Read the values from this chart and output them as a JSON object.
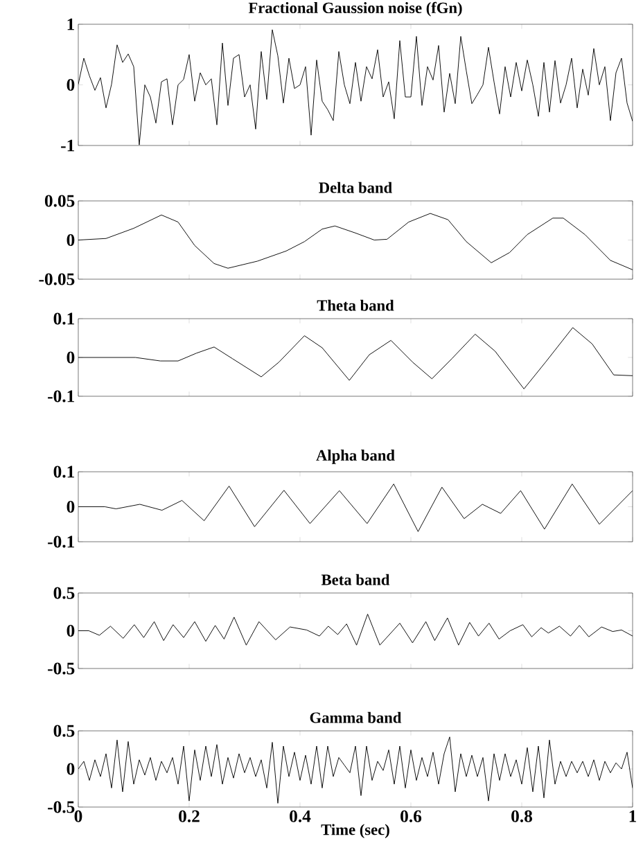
{
  "chart_data": [
    {
      "type": "line",
      "title": "Fractional Gaussion noise (fGn)",
      "color": "#000000",
      "tick_labels": "y",
      "xlim": [
        0,
        1
      ],
      "ylim": [
        -1,
        1
      ],
      "xticks": [
        0,
        0.2,
        0.4,
        0.6,
        0.8,
        1
      ],
      "yticks": [
        -1,
        0,
        1
      ],
      "x": [
        0,
        0.01,
        0.02,
        0.03,
        0.04,
        0.05,
        0.06,
        0.07,
        0.08,
        0.09,
        0.1,
        0.11,
        0.12,
        0.13,
        0.14,
        0.15,
        0.16,
        0.17,
        0.18,
        0.19,
        0.2,
        0.21,
        0.22,
        0.23,
        0.24,
        0.25,
        0.26,
        0.27,
        0.28,
        0.29,
        0.3,
        0.31,
        0.32,
        0.33,
        0.34,
        0.35,
        0.36,
        0.37,
        0.38,
        0.39,
        0.4,
        0.41,
        0.42,
        0.43,
        0.44,
        0.45,
        0.46,
        0.47,
        0.48,
        0.49,
        0.5,
        0.51,
        0.52,
        0.53,
        0.54,
        0.55,
        0.56,
        0.57,
        0.58,
        0.59,
        0.6,
        0.61,
        0.62,
        0.63,
        0.64,
        0.65,
        0.66,
        0.67,
        0.68,
        0.69,
        0.7,
        0.71,
        0.72,
        0.73,
        0.74,
        0.75,
        0.76,
        0.77,
        0.78,
        0.79,
        0.8,
        0.81,
        0.82,
        0.83,
        0.84,
        0.85,
        0.86,
        0.87,
        0.88,
        0.89,
        0.9,
        0.91,
        0.92,
        0.93,
        0.94,
        0.95,
        0.96,
        0.97,
        0.98,
        0.99,
        1
      ],
      "values": [
        0.01,
        0.44,
        0.15,
        -0.09,
        0.12,
        -0.38,
        0.01,
        0.66,
        0.37,
        0.51,
        0.3,
        -0.99,
        0.0,
        -0.2,
        -0.63,
        0.05,
        0.1,
        -0.66,
        0.0,
        0.09,
        0.5,
        -0.27,
        0.2,
        0.0,
        0.1,
        -0.66,
        0.69,
        -0.34,
        0.44,
        0.5,
        -0.2,
        0.0,
        -0.73,
        0.55,
        -0.24,
        0.91,
        0.48,
        -0.3,
        0.44,
        -0.06,
        0.0,
        0.3,
        -0.83,
        0.41,
        -0.27,
        -0.41,
        -0.59,
        0.55,
        0.0,
        -0.31,
        0.37,
        -0.27,
        0.3,
        0.1,
        0.58,
        -0.2,
        0.05,
        -0.56,
        0.73,
        -0.2,
        -0.2,
        0.8,
        -0.34,
        0.3,
        0.08,
        0.65,
        -0.45,
        0.19,
        -0.31,
        0.8,
        0.23,
        -0.31,
        -0.16,
        0.0,
        0.62,
        0.05,
        -0.48,
        0.3,
        -0.2,
        0.37,
        -0.1,
        0.41,
        0.0,
        -0.52,
        0.37,
        -0.45,
        0.4,
        -0.3,
        0.0,
        0.44,
        -0.38,
        0.26,
        -0.17,
        0.6,
        0.0,
        0.3,
        -0.59,
        0.2,
        0.44,
        -0.3,
        -0.6
      ]
    },
    {
      "type": "line",
      "title": "Delta band",
      "color": "#000000",
      "tick_labels": "y",
      "xlim": [
        0,
        1
      ],
      "ylim": [
        -0.05,
        0.05
      ],
      "xticks": [
        0,
        0.2,
        0.4,
        0.6,
        0.8,
        1
      ],
      "yticks": [
        -0.05,
        0,
        0.05
      ],
      "x": [
        0,
        0.05,
        0.1,
        0.15,
        0.18,
        0.21,
        0.245,
        0.27,
        0.323,
        0.375,
        0.408,
        0.44,
        0.463,
        0.5,
        0.534,
        0.557,
        0.596,
        0.635,
        0.667,
        0.7,
        0.745,
        0.778,
        0.81,
        0.856,
        0.875,
        0.914,
        0.96,
        1
      ],
      "values": [
        0,
        0.002,
        0.015,
        0.032,
        0.023,
        -0.007,
        -0.03,
        -0.036,
        -0.027,
        -0.014,
        -0.002,
        0.014,
        0.018,
        0.009,
        0.0,
        0.001,
        0.023,
        0.034,
        0.026,
        -0.002,
        -0.029,
        -0.016,
        0.007,
        0.028,
        0.028,
        0.007,
        -0.026,
        -0.038
      ]
    },
    {
      "type": "line",
      "title": "Theta band",
      "color": "#000000",
      "tick_labels": "y",
      "xlim": [
        0,
        1
      ],
      "ylim": [
        -0.1,
        0.1
      ],
      "xticks": [
        0,
        0.2,
        0.4,
        0.6,
        0.8,
        1
      ],
      "yticks": [
        -0.1,
        0,
        0.1
      ],
      "x": [
        0,
        0.103,
        0.148,
        0.18,
        0.213,
        0.245,
        0.278,
        0.33,
        0.362,
        0.408,
        0.44,
        0.489,
        0.525,
        0.564,
        0.603,
        0.638,
        0.674,
        0.716,
        0.752,
        0.804,
        0.843,
        0.892,
        0.927,
        0.966,
        1
      ],
      "values": [
        0,
        0,
        -0.009,
        -0.009,
        0.011,
        0.027,
        -0.003,
        -0.05,
        -0.012,
        0.056,
        0.025,
        -0.059,
        0.007,
        0.044,
        -0.012,
        -0.055,
        -0.003,
        0.06,
        0.016,
        -0.081,
        -0.012,
        0.077,
        0.035,
        -0.045,
        -0.047
      ]
    },
    {
      "type": "line",
      "title": "Alpha band",
      "color": "#000000",
      "tick_labels": "y",
      "xlim": [
        0,
        1
      ],
      "ylim": [
        -0.1,
        0.1
      ],
      "xticks": [
        0,
        0.2,
        0.4,
        0.6,
        0.8,
        1
      ],
      "yticks": [
        -0.1,
        0,
        0.1
      ],
      "x": [
        0,
        0.048,
        0.068,
        0.111,
        0.151,
        0.187,
        0.227,
        0.272,
        0.318,
        0.371,
        0.418,
        0.471,
        0.521,
        0.569,
        0.613,
        0.656,
        0.696,
        0.729,
        0.762,
        0.798,
        0.841,
        0.891,
        0.94,
        1
      ],
      "values": [
        0,
        0,
        -0.006,
        0.007,
        -0.01,
        0.018,
        -0.04,
        0.059,
        -0.057,
        0.047,
        -0.048,
        0.046,
        -0.048,
        0.065,
        -0.071,
        0.056,
        -0.034,
        0.007,
        -0.019,
        0.046,
        -0.064,
        0.065,
        -0.05,
        0.046
      ]
    },
    {
      "type": "line",
      "title": "Beta band",
      "color": "#000000",
      "tick_labels": "y",
      "xlim": [
        0,
        1
      ],
      "ylim": [
        -0.5,
        0.5
      ],
      "xticks": [
        0,
        0.2,
        0.4,
        0.6,
        0.8,
        1
      ],
      "yticks": [
        -0.5,
        0,
        0.5
      ],
      "x": [
        0,
        0.019,
        0.038,
        0.058,
        0.081,
        0.101,
        0.118,
        0.137,
        0.154,
        0.171,
        0.19,
        0.21,
        0.23,
        0.247,
        0.263,
        0.281,
        0.303,
        0.326,
        0.356,
        0.382,
        0.412,
        0.435,
        0.451,
        0.468,
        0.484,
        0.502,
        0.522,
        0.544,
        0.58,
        0.603,
        0.627,
        0.643,
        0.666,
        0.686,
        0.706,
        0.722,
        0.741,
        0.759,
        0.779,
        0.802,
        0.818,
        0.835,
        0.848,
        0.868,
        0.888,
        0.904,
        0.921,
        0.944,
        0.964,
        0.98,
        1
      ],
      "values": [
        0,
        0,
        -0.06,
        0.06,
        -0.1,
        0.08,
        -0.09,
        0.12,
        -0.13,
        0.08,
        -0.09,
        0.12,
        -0.14,
        0.07,
        -0.11,
        0.18,
        -0.19,
        0.12,
        -0.12,
        0.05,
        0.01,
        -0.07,
        0.06,
        -0.05,
        0.09,
        -0.19,
        0.22,
        -0.19,
        0.1,
        -0.16,
        0.12,
        -0.13,
        0.17,
        -0.19,
        0.11,
        -0.07,
        0.1,
        -0.11,
        0,
        0.08,
        -0.08,
        0.04,
        -0.03,
        0.06,
        -0.07,
        0.07,
        -0.08,
        0.05,
        -0.01,
        0.01,
        -0.07
      ]
    },
    {
      "type": "line",
      "title": "Gamma band",
      "xlabel": "Time (sec)",
      "color": "#000000",
      "xlim": [
        0,
        1
      ],
      "ylim": [
        -0.5,
        0.5
      ],
      "xticks": [
        0,
        0.2,
        0.4,
        0.6,
        0.8,
        1
      ],
      "yticks": [
        -0.5,
        0,
        0.5
      ],
      "x": [
        0,
        0.01,
        0.02,
        0.03,
        0.04,
        0.05,
        0.06,
        0.07,
        0.08,
        0.09,
        0.1,
        0.11,
        0.12,
        0.13,
        0.14,
        0.15,
        0.16,
        0.17,
        0.18,
        0.19,
        0.2,
        0.21,
        0.22,
        0.23,
        0.24,
        0.25,
        0.26,
        0.27,
        0.28,
        0.29,
        0.3,
        0.31,
        0.32,
        0.33,
        0.34,
        0.35,
        0.36,
        0.37,
        0.38,
        0.39,
        0.4,
        0.41,
        0.42,
        0.43,
        0.44,
        0.45,
        0.46,
        0.47,
        0.48,
        0.49,
        0.5,
        0.51,
        0.52,
        0.53,
        0.54,
        0.55,
        0.56,
        0.57,
        0.58,
        0.59,
        0.6,
        0.61,
        0.62,
        0.63,
        0.64,
        0.65,
        0.66,
        0.67,
        0.68,
        0.69,
        0.7,
        0.71,
        0.72,
        0.73,
        0.74,
        0.75,
        0.76,
        0.77,
        0.78,
        0.79,
        0.8,
        0.81,
        0.82,
        0.83,
        0.84,
        0.85,
        0.86,
        0.87,
        0.88,
        0.89,
        0.9,
        0.91,
        0.92,
        0.93,
        0.94,
        0.95,
        0.96,
        0.97,
        0.98,
        0.99,
        1
      ],
      "values": [
        0.0,
        0.1,
        -0.15,
        0.12,
        -0.1,
        0.2,
        -0.25,
        0.38,
        -0.3,
        0.36,
        -0.2,
        0.12,
        -0.08,
        0.15,
        -0.15,
        0.1,
        -0.05,
        0.15,
        -0.2,
        0.3,
        -0.42,
        0.25,
        -0.15,
        0.3,
        -0.1,
        0.32,
        -0.2,
        0.15,
        -0.12,
        0.2,
        -0.05,
        0.15,
        -0.1,
        0.12,
        -0.25,
        0.35,
        -0.45,
        0.3,
        -0.1,
        0.22,
        -0.15,
        0.18,
        -0.2,
        0.3,
        -0.25,
        0.3,
        -0.1,
        0.15,
        0.05,
        -0.05,
        0.3,
        -0.35,
        0.3,
        -0.15,
        0.1,
        -0.02,
        0.25,
        -0.2,
        0.3,
        -0.25,
        0.25,
        -0.15,
        0.15,
        -0.1,
        0.22,
        -0.2,
        0.2,
        0.42,
        -0.3,
        0.2,
        -0.1,
        0.18,
        -0.1,
        0.15,
        -0.42,
        0.2,
        -0.15,
        0.2,
        -0.1,
        0.12,
        -0.2,
        0.28,
        -0.3,
        0.3,
        -0.38,
        0.38,
        -0.2,
        0.1,
        -0.1,
        0.1,
        -0.05,
        0.1,
        -0.1,
        0.12,
        -0.15,
        0.1,
        -0.05,
        0.08,
        0.0,
        0.22,
        -0.25
      ]
    }
  ]
}
